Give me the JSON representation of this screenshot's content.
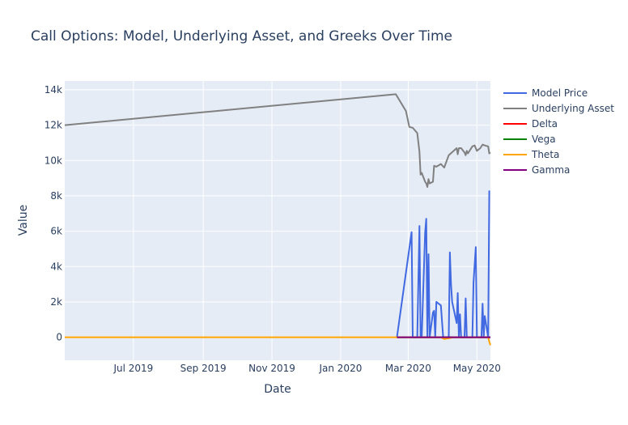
{
  "chart_data": {
    "type": "line",
    "title": "Call Options: Model, Underlying Asset, and Greeks Over Time",
    "xlabel": "Date",
    "ylabel": "Value",
    "x_ticks": [
      {
        "date": "2019-07-01",
        "label": "Jul 2019"
      },
      {
        "date": "2019-09-01",
        "label": "Sep 2019"
      },
      {
        "date": "2019-11-01",
        "label": "Nov 2019"
      },
      {
        "date": "2020-01-01",
        "label": "Jan 2020"
      },
      {
        "date": "2020-03-01",
        "label": "Mar 2020"
      },
      {
        "date": "2020-05-01",
        "label": "May 2020"
      }
    ],
    "y_ticks": [
      {
        "value": 0,
        "label": "0"
      },
      {
        "value": 2000,
        "label": "2k"
      },
      {
        "value": 4000,
        "label": "4k"
      },
      {
        "value": 6000,
        "label": "6k"
      },
      {
        "value": 8000,
        "label": "8k"
      },
      {
        "value": 10000,
        "label": "10k"
      },
      {
        "value": 12000,
        "label": "12k"
      },
      {
        "value": 14000,
        "label": "14k"
      }
    ],
    "xlim": [
      "2019-05-01",
      "2020-05-13"
    ],
    "ylim": [
      -1300,
      14500
    ],
    "grid": true,
    "legend_position": "top-right",
    "series": [
      {
        "name": "Model Price",
        "color": "#4169e1",
        "points": [
          [
            "2020-02-20",
            0
          ],
          [
            "2020-03-04",
            5950
          ],
          [
            "2020-03-05",
            0
          ],
          [
            "2020-03-09",
            0
          ],
          [
            "2020-03-11",
            6300
          ],
          [
            "2020-03-12",
            0
          ],
          [
            "2020-03-13",
            0
          ],
          [
            "2020-03-16",
            5900
          ],
          [
            "2020-03-17",
            6700
          ],
          [
            "2020-03-18",
            0
          ],
          [
            "2020-03-19",
            4700
          ],
          [
            "2020-03-20",
            0
          ],
          [
            "2020-03-23",
            1400
          ],
          [
            "2020-03-24",
            1500
          ],
          [
            "2020-03-25",
            0
          ],
          [
            "2020-03-26",
            2000
          ],
          [
            "2020-03-30",
            1800
          ],
          [
            "2020-04-01",
            0
          ],
          [
            "2020-04-06",
            0
          ],
          [
            "2020-04-07",
            4800
          ],
          [
            "2020-04-08",
            3000
          ],
          [
            "2020-04-09",
            2000
          ],
          [
            "2020-04-13",
            800
          ],
          [
            "2020-04-14",
            2500
          ],
          [
            "2020-04-15",
            0
          ],
          [
            "2020-04-16",
            1300
          ],
          [
            "2020-04-17",
            0
          ],
          [
            "2020-04-20",
            0
          ],
          [
            "2020-04-21",
            2200
          ],
          [
            "2020-04-22",
            0
          ],
          [
            "2020-04-27",
            0
          ],
          [
            "2020-04-28",
            3100
          ],
          [
            "2020-04-30",
            5100
          ],
          [
            "2020-05-01",
            0
          ],
          [
            "2020-05-05",
            0
          ],
          [
            "2020-05-06",
            1900
          ],
          [
            "2020-05-07",
            0
          ],
          [
            "2020-05-08",
            1200
          ],
          [
            "2020-05-11",
            0
          ],
          [
            "2020-05-12",
            8300
          ]
        ]
      },
      {
        "name": "Underlying Asset",
        "color": "#808080",
        "points": [
          [
            "2019-05-01",
            12000
          ],
          [
            "2020-02-19",
            13750
          ],
          [
            "2020-02-28",
            12800
          ],
          [
            "2020-03-02",
            11900
          ],
          [
            "2020-03-05",
            11850
          ],
          [
            "2020-03-09",
            11550
          ],
          [
            "2020-03-11",
            10500
          ],
          [
            "2020-03-12",
            9200
          ],
          [
            "2020-03-13",
            9300
          ],
          [
            "2020-03-16",
            8800
          ],
          [
            "2020-03-17",
            8700
          ],
          [
            "2020-03-18",
            8500
          ],
          [
            "2020-03-19",
            8950
          ],
          [
            "2020-03-20",
            8700
          ],
          [
            "2020-03-23",
            8800
          ],
          [
            "2020-03-24",
            9700
          ],
          [
            "2020-03-26",
            9650
          ],
          [
            "2020-03-30",
            9800
          ],
          [
            "2020-04-02",
            9600
          ],
          [
            "2020-04-06",
            10300
          ],
          [
            "2020-04-13",
            10700
          ],
          [
            "2020-04-14",
            10350
          ],
          [
            "2020-04-15",
            10700
          ],
          [
            "2020-04-17",
            10700
          ],
          [
            "2020-04-20",
            10450
          ],
          [
            "2020-04-21",
            10300
          ],
          [
            "2020-04-22",
            10550
          ],
          [
            "2020-04-23",
            10400
          ],
          [
            "2020-04-27",
            10800
          ],
          [
            "2020-04-29",
            10850
          ],
          [
            "2020-05-01",
            10550
          ],
          [
            "2020-05-04",
            10700
          ],
          [
            "2020-05-06",
            10900
          ],
          [
            "2020-05-08",
            10850
          ],
          [
            "2020-05-11",
            10800
          ],
          [
            "2020-05-12",
            10400
          ],
          [
            "2020-05-13",
            10450
          ]
        ]
      },
      {
        "name": "Delta",
        "color": "#ff0000",
        "points": [
          [
            "2020-02-20",
            0
          ],
          [
            "2020-05-13",
            1
          ]
        ]
      },
      {
        "name": "Vega",
        "color": "#008000",
        "points": [
          [
            "2020-02-20",
            0
          ],
          [
            "2020-05-13",
            0
          ]
        ]
      },
      {
        "name": "Theta",
        "color": "#ffa500",
        "points": [
          [
            "2019-05-01",
            0
          ],
          [
            "2020-03-30",
            0
          ],
          [
            "2020-04-02",
            -100
          ],
          [
            "2020-04-06",
            -60
          ],
          [
            "2020-04-10",
            0
          ],
          [
            "2020-05-11",
            0
          ],
          [
            "2020-05-12",
            -250
          ],
          [
            "2020-05-13",
            -450
          ]
        ]
      },
      {
        "name": "Gamma",
        "color": "#800080",
        "points": [
          [
            "2020-02-20",
            0
          ],
          [
            "2020-05-13",
            0
          ]
        ]
      }
    ]
  }
}
